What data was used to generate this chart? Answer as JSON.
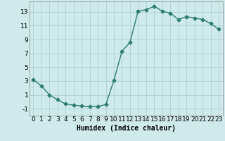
{
  "x": [
    0,
    1,
    2,
    3,
    4,
    5,
    6,
    7,
    8,
    9,
    10,
    11,
    12,
    13,
    14,
    15,
    16,
    17,
    18,
    19,
    20,
    21,
    22,
    23
  ],
  "y": [
    3.2,
    2.3,
    1.0,
    0.3,
    -0.3,
    -0.5,
    -0.6,
    -0.7,
    -0.65,
    -0.4,
    3.1,
    7.3,
    8.6,
    13.1,
    13.3,
    13.8,
    13.1,
    12.8,
    11.9,
    12.3,
    12.1,
    11.9,
    11.3,
    10.5
  ],
  "line_color": "#2e7d6e",
  "marker": "D",
  "marker_size": 2.5,
  "bg_color": "#ceeaea",
  "grid_color": "#b0cfcf",
  "xlabel": "Humidex (Indice chaleur)",
  "xlabel_fontsize": 7,
  "ytick_values": [
    -1,
    1,
    3,
    5,
    7,
    9,
    11,
    13
  ],
  "xtick_values": [
    0,
    1,
    2,
    3,
    4,
    5,
    6,
    7,
    8,
    9,
    10,
    11,
    12,
    13,
    14,
    15,
    16,
    17,
    18,
    19,
    20,
    21,
    22,
    23
  ],
  "ylim": [
    -2,
    14.5
  ],
  "xlim": [
    -0.5,
    23.5
  ],
  "tick_fontsize": 6.5,
  "line_width": 1.0
}
